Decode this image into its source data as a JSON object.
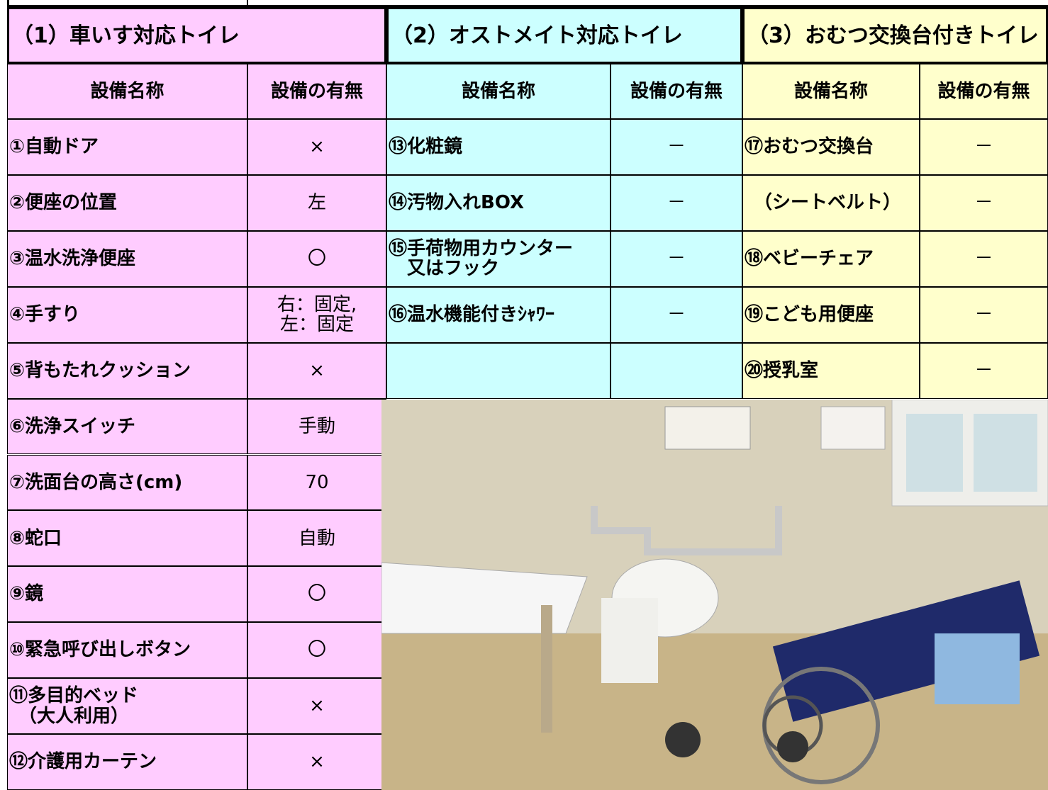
{
  "sections": [
    {
      "title": "（1）車いす対応トイレ",
      "headers": [
        "設備名称",
        "設備の有無"
      ],
      "rows": [
        [
          "①自動ドア",
          "×"
        ],
        [
          "②便座の位置",
          "左"
        ],
        [
          "③温水洗浄便座",
          "〇"
        ],
        [
          "④手すり",
          "右：固定,\n左：固定"
        ],
        [
          "⑤背もたれクッション",
          "×"
        ],
        [
          "⑥洗浄スイッチ",
          "手動"
        ],
        [
          "⑦洗面台の高さ(cm)",
          "70"
        ],
        [
          "⑧蛇口",
          "自動"
        ],
        [
          "⑨鏡",
          "〇"
        ],
        [
          "⑩緊急呼び出しボタン",
          "〇"
        ],
        [
          "⑪多目的ベッド\n　（大人利用）",
          "×"
        ],
        [
          "⑫介護用カーテン",
          "×"
        ]
      ]
    },
    {
      "title": "（2）オストメイト対応トイレ",
      "headers": [
        "設備名称",
        "設備の有無"
      ],
      "rows": [
        [
          "⑬化粧鏡",
          "－"
        ],
        [
          "⑭汚物入れBOX",
          "－"
        ],
        [
          "⑮手荷物用カウンター\n　又はフック",
          "－"
        ],
        [
          "⑯温水機能付きｼｬﾜｰ",
          "－"
        ]
      ]
    },
    {
      "title": "（3）おむつ交換台付きトイレ",
      "headers": [
        "設備名称",
        "設備の有無"
      ],
      "rows": [
        [
          "⑰おむつ交換台",
          "－"
        ],
        [
          "　（シートベルト）",
          "－"
        ],
        [
          "⑱ベビーチェア",
          "－"
        ],
        [
          "⑲こども用便座",
          "－"
        ],
        [
          "⑳授乳室",
          "－"
        ]
      ]
    }
  ]
}
